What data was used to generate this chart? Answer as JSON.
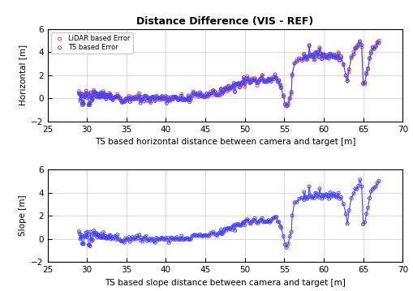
{
  "title": "Distance Difference (VIS - REF)",
  "subplot1_xlabel": "TS based horizontal distance between camera and target [m]",
  "subplot1_ylabel": "Horizontal [m]",
  "subplot2_xlabel": "TS based slope distance between camera and target [m]",
  "subplot2_ylabel": "Slope [m]",
  "xlim": [
    25,
    70
  ],
  "ylim": [
    -2,
    6
  ],
  "xticks": [
    25,
    30,
    35,
    40,
    45,
    50,
    55,
    60,
    65,
    70
  ],
  "yticks": [
    -2,
    0,
    2,
    4,
    6
  ],
  "lidar_color": "#FF4444",
  "ts_color": "#4444FF",
  "lidar_label": "LiDAR based Error",
  "ts_label": "TS based Error",
  "background_color": "#FFFFFF",
  "grid_color": "#CCCCCC",
  "title_fontsize": 9,
  "label_fontsize": 7.5,
  "tick_fontsize": 7.5
}
